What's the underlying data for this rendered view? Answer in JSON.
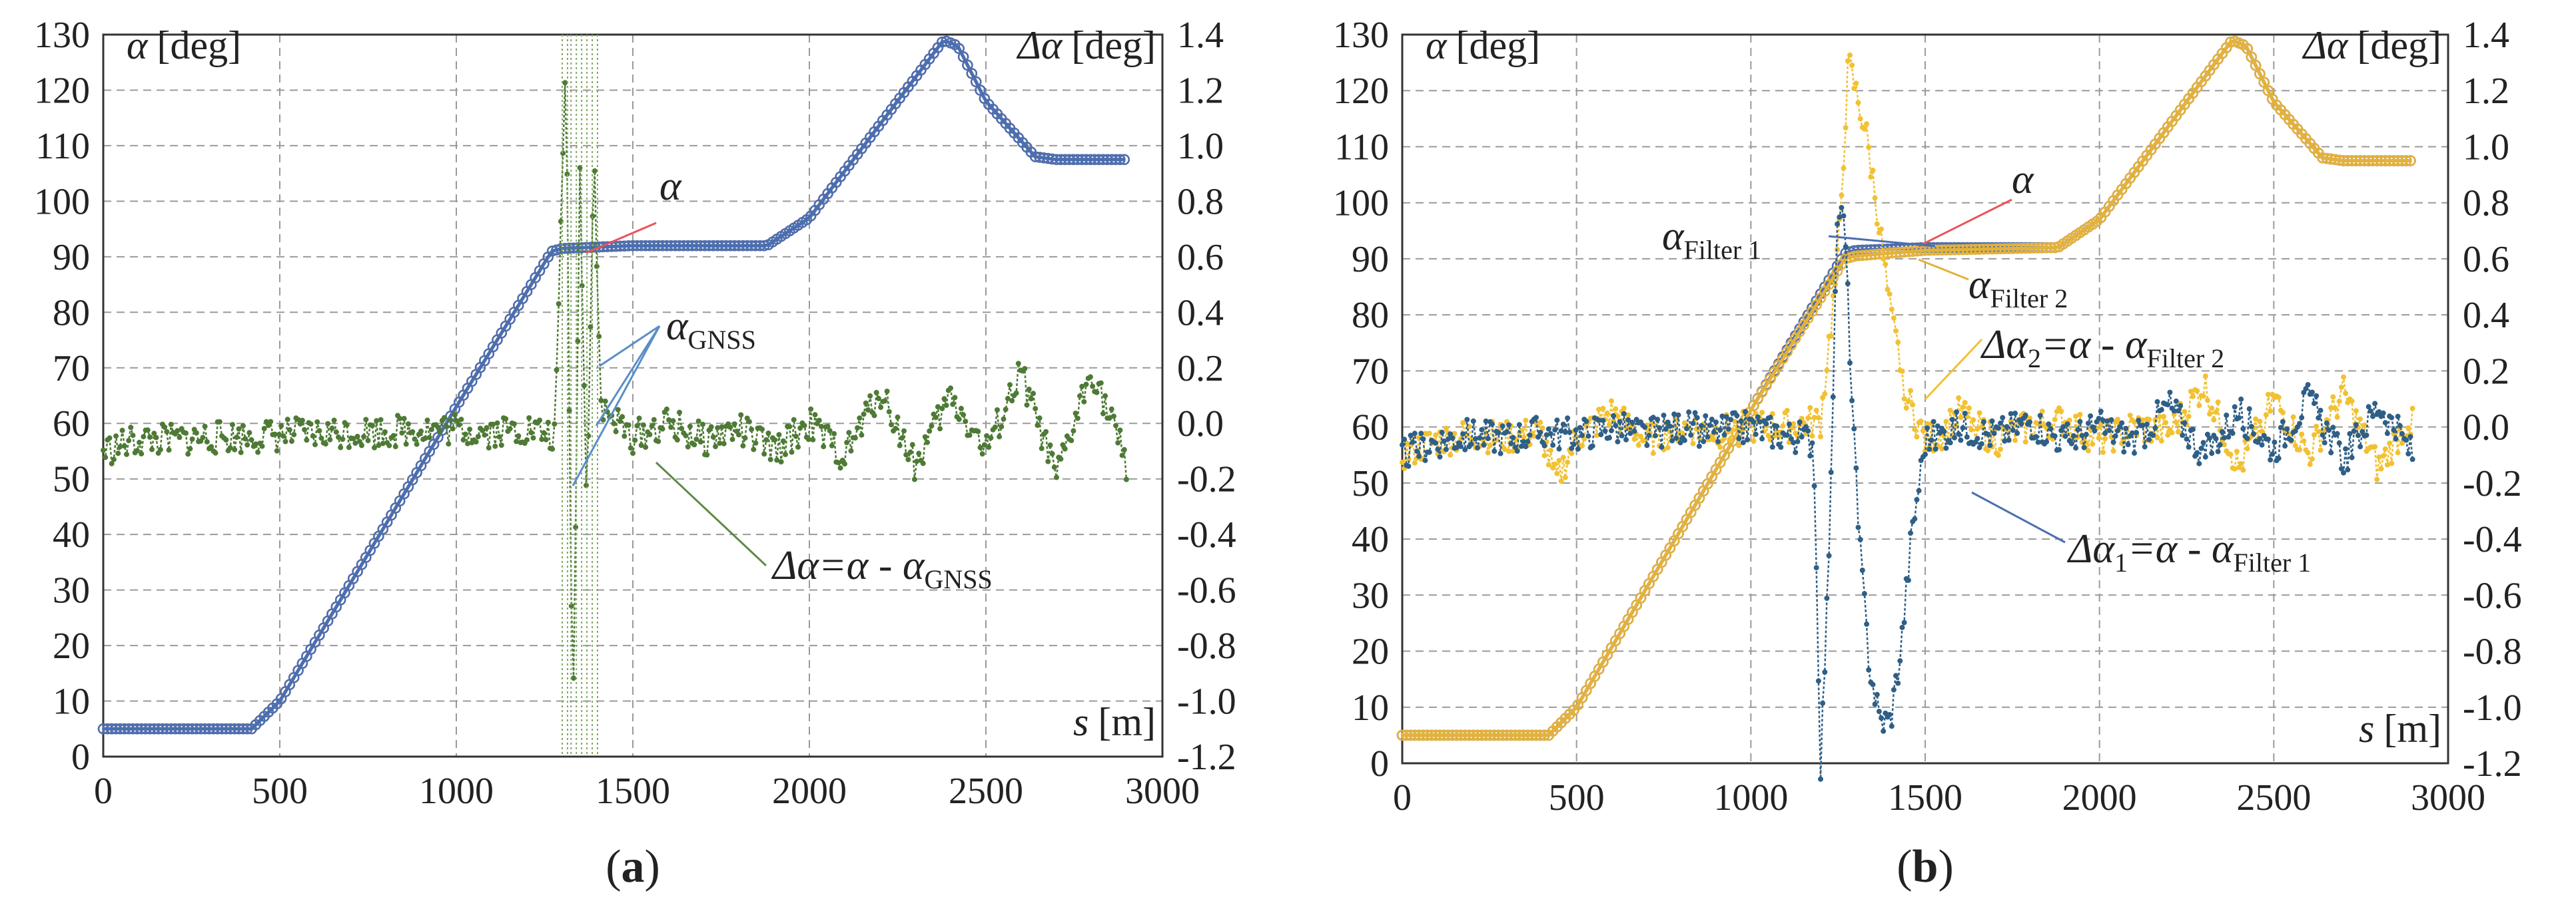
{
  "chart_data": [
    {
      "type": "line",
      "panel_label": "(a)",
      "panel_label_letter": "a",
      "x": [
        0,
        200,
        420,
        500,
        1000,
        1270,
        1300,
        1500,
        1880,
        2000,
        2380,
        2420,
        2500,
        2640,
        2700,
        2900
      ],
      "xlim": [
        0,
        3000
      ],
      "xticks": [
        0,
        500,
        1000,
        1500,
        2000,
        2500,
        3000
      ],
      "ylim": [
        0,
        130
      ],
      "yticks": [
        0,
        10,
        20,
        30,
        40,
        50,
        60,
        70,
        80,
        90,
        100,
        110,
        120,
        130
      ],
      "y2lim": [
        -1.2,
        1.4
      ],
      "y2ticks": [
        "1.4",
        "1.2",
        "1.0",
        "0.8",
        "0.6",
        "0.4",
        "0.2",
        "0.0",
        "-0.2",
        "-0.4",
        "-0.6",
        "-0.8",
        "-1.0",
        "-1.2"
      ],
      "series": [
        {
          "name": "α",
          "axis": "left",
          "color": "#e8545a",
          "values": [
            5,
            5,
            5,
            10,
            63,
            91,
            91.5,
            92,
            92,
            97,
            129,
            128,
            118,
            108,
            107.5,
            107.5
          ]
        },
        {
          "name": "αGNSS",
          "axis": "left",
          "color": "#4a6fb0",
          "values": [
            5,
            5,
            5,
            10,
            63,
            91,
            91.5,
            92,
            92,
            97,
            129,
            128,
            118,
            108,
            107.5,
            107.5
          ]
        },
        {
          "name": "Δα=α - αGNSS",
          "axis": "right",
          "color": "#4e7a35",
          "x": [
            0,
            100,
            200,
            300,
            400,
            500,
            600,
            700,
            800,
            900,
            1000,
            1100,
            1200,
            1280,
            1310,
            1330,
            1350,
            1370,
            1390,
            1410,
            1500,
            1600,
            1700,
            1800,
            1900,
            2000,
            2100,
            2200,
            2300,
            2400,
            2500,
            2600,
            2700,
            2800,
            2900
          ],
          "values": [
            -0.1,
            -0.06,
            -0.06,
            -0.05,
            -0.05,
            -0.04,
            -0.04,
            -0.03,
            -0.03,
            -0.02,
            -0.02,
            -0.03,
            -0.02,
            -0.05,
            1.35,
            -1.15,
            0.9,
            -0.3,
            1.0,
            0.05,
            -0.05,
            0.0,
            -0.06,
            -0.02,
            -0.1,
            0.0,
            -0.12,
            0.12,
            -0.15,
            0.1,
            -0.1,
            0.18,
            -0.2,
            0.2,
            -0.15
          ]
        }
      ],
      "annotations": {
        "ylabel": {
          "sym": "α",
          "unit": "[deg]"
        },
        "y2label": {
          "sym": "Δα",
          "unit": "[deg]"
        },
        "xlabel": {
          "sym": "s",
          "unit": "[m]"
        },
        "alpha": "α",
        "gnss": {
          "sym": "α",
          "sub": "GNSS"
        },
        "delta": {
          "a": "Δα=α - α",
          "sub": "GNSS"
        }
      }
    },
    {
      "type": "line",
      "panel_label": "(b)",
      "panel_label_letter": "b",
      "x": [
        0,
        200,
        420,
        500,
        1000,
        1270,
        1300,
        1500,
        1880,
        2000,
        2380,
        2420,
        2500,
        2640,
        2700,
        2900
      ],
      "xlim": [
        0,
        3000
      ],
      "xticks": [
        0,
        500,
        1000,
        1500,
        2000,
        2500,
        3000
      ],
      "ylim": [
        0,
        130
      ],
      "yticks": [
        0,
        10,
        20,
        30,
        40,
        50,
        60,
        70,
        80,
        90,
        100,
        110,
        120,
        130
      ],
      "y2lim": [
        -1.2,
        1.4
      ],
      "y2ticks": [
        "1.4",
        "1.2",
        "1.0",
        "0.8",
        "0.6",
        "0.4",
        "0.2",
        "0.0",
        "-0.2",
        "-0.4",
        "-0.6",
        "-0.8",
        "-1.0",
        "-1.2"
      ],
      "series": [
        {
          "name": "α",
          "axis": "left",
          "color": "#e8545a",
          "values": [
            5,
            5,
            5,
            10,
            63,
            91,
            91.5,
            92,
            92,
            97,
            129,
            128,
            118,
            108,
            107.5,
            107.5
          ]
        },
        {
          "name": "αFilter 1",
          "axis": "left",
          "color": "#4a6fb0",
          "values": [
            5,
            5,
            5,
            10,
            63,
            91,
            91.5,
            92,
            92,
            97,
            129,
            128,
            118,
            108,
            107.5,
            107.5
          ]
        },
        {
          "name": "αFilter 2",
          "axis": "left",
          "color": "#e3b23c",
          "values": [
            5,
            5,
            5,
            10,
            63,
            90,
            90.5,
            91.5,
            92,
            97,
            129,
            128,
            118,
            108,
            107.5,
            107.5
          ]
        },
        {
          "name": "Δα2=α - αFilter 2",
          "axis": "right",
          "color": "#f2c132",
          "x": [
            0,
            100,
            200,
            300,
            400,
            440,
            500,
            600,
            700,
            800,
            900,
            1000,
            1100,
            1200,
            1250,
            1280,
            1300,
            1330,
            1360,
            1400,
            1450,
            1500,
            1550,
            1600,
            1700,
            1800,
            1900,
            2000,
            2100,
            2200,
            2300,
            2400,
            2500,
            2600,
            2700,
            2800,
            2900
          ],
          "values": [
            -0.1,
            -0.05,
            -0.03,
            -0.04,
            -0.02,
            -0.2,
            -0.04,
            0.05,
            -0.05,
            0.0,
            -0.02,
            0.0,
            0.0,
            0.02,
            0.6,
            1.3,
            1.2,
            1.05,
            0.8,
            0.4,
            0.1,
            -0.05,
            -0.02,
            0.05,
            -0.05,
            0.0,
            0.02,
            -0.05,
            0.0,
            -0.02,
            0.15,
            -0.15,
            0.1,
            -0.1,
            0.12,
            -0.15,
            0.05
          ]
        },
        {
          "name": "Δα1=α - αFilter 1",
          "axis": "right",
          "color": "#2f5f86",
          "x": [
            0,
            100,
            200,
            300,
            400,
            500,
            600,
            700,
            800,
            900,
            1000,
            1100,
            1180,
            1200,
            1220,
            1250,
            1270,
            1290,
            1310,
            1340,
            1370,
            1400,
            1430,
            1460,
            1500,
            1600,
            1700,
            1800,
            1900,
            2000,
            2100,
            2200,
            2300,
            2400,
            2500,
            2600,
            2700,
            2800,
            2900
          ],
          "values": [
            -0.1,
            -0.05,
            -0.03,
            -0.04,
            -0.02,
            -0.03,
            0.0,
            -0.03,
            0.0,
            -0.02,
            0.0,
            -0.03,
            -0.05,
            -1.2,
            -0.6,
            0.8,
            0.7,
            0.1,
            -0.4,
            -0.85,
            -1.05,
            -1.05,
            -0.8,
            -0.4,
            -0.05,
            0.0,
            -0.03,
            0.02,
            -0.05,
            0.0,
            -0.05,
            0.08,
            -0.1,
            0.05,
            -0.08,
            0.1,
            -0.12,
            0.08,
            -0.1
          ]
        }
      ],
      "annotations": {
        "ylabel": {
          "sym": "α",
          "unit": "[deg]"
        },
        "y2label": {
          "sym": "Δα",
          "unit": "[deg]"
        },
        "xlabel": {
          "sym": "s",
          "unit": "[m]"
        },
        "alpha": "α",
        "filter1": {
          "sym": "α",
          "sub": "Filter 1"
        },
        "filter2": {
          "sym": "α",
          "sub": "Filter 2"
        },
        "delta2": {
          "a": "Δα",
          "i": "2",
          "b": "=α - α",
          "sub": "Filter 2"
        },
        "delta1": {
          "a": "Δα",
          "i": "1",
          "b": "=α - α",
          "sub": "Filter 1"
        }
      }
    }
  ]
}
